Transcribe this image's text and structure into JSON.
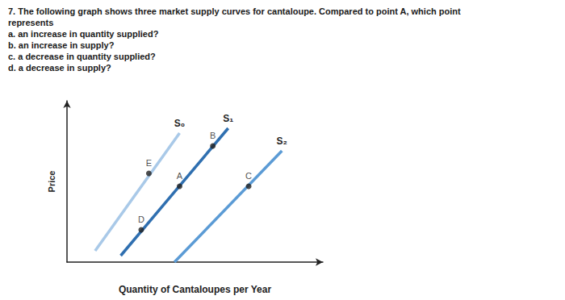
{
  "question": {
    "lines": [
      "7. The following graph shows three market supply curves for cantaloupe. Compared to point A, which point",
      "represents",
      "a. an increase in quantity supplied?",
      "b. an increase in supply?",
      "c. a decrease in quantity supplied?",
      "d. a decrease in supply?"
    ]
  },
  "chart_data": {
    "type": "line",
    "x_label": "Quantity of Cantaloupes per Year",
    "y_label": "Price",
    "xlim": [
      0,
      10
    ],
    "ylim": [
      0,
      10
    ],
    "tick_labels": false,
    "grid": false,
    "series": [
      {
        "name": "S₀",
        "color": "#a9c9e8",
        "line_style": "solid",
        "x": [
          1.1,
          4.4
        ],
        "values": [
          0.7,
          8.0
        ]
      },
      {
        "name": "S₁",
        "color": "#2f6fb0",
        "line_style": "solid",
        "x": [
          2.1,
          6.3
        ],
        "values": [
          0.4,
          8.3
        ]
      },
      {
        "name": "S₂",
        "color": "#5b9bd5",
        "line_style": "solid",
        "x": [
          4.2,
          8.4
        ],
        "values": [
          0.0,
          6.9
        ]
      }
    ],
    "points": {
      "type": "scatter",
      "marker": "circle",
      "color": "#222222",
      "labels": [
        "A",
        "B",
        "C",
        "D",
        "E"
      ],
      "x": [
        4.4,
        5.7,
        7.1,
        2.9,
        3.2
      ],
      "values": [
        4.7,
        7.2,
        4.7,
        2.0,
        5.5
      ]
    }
  }
}
